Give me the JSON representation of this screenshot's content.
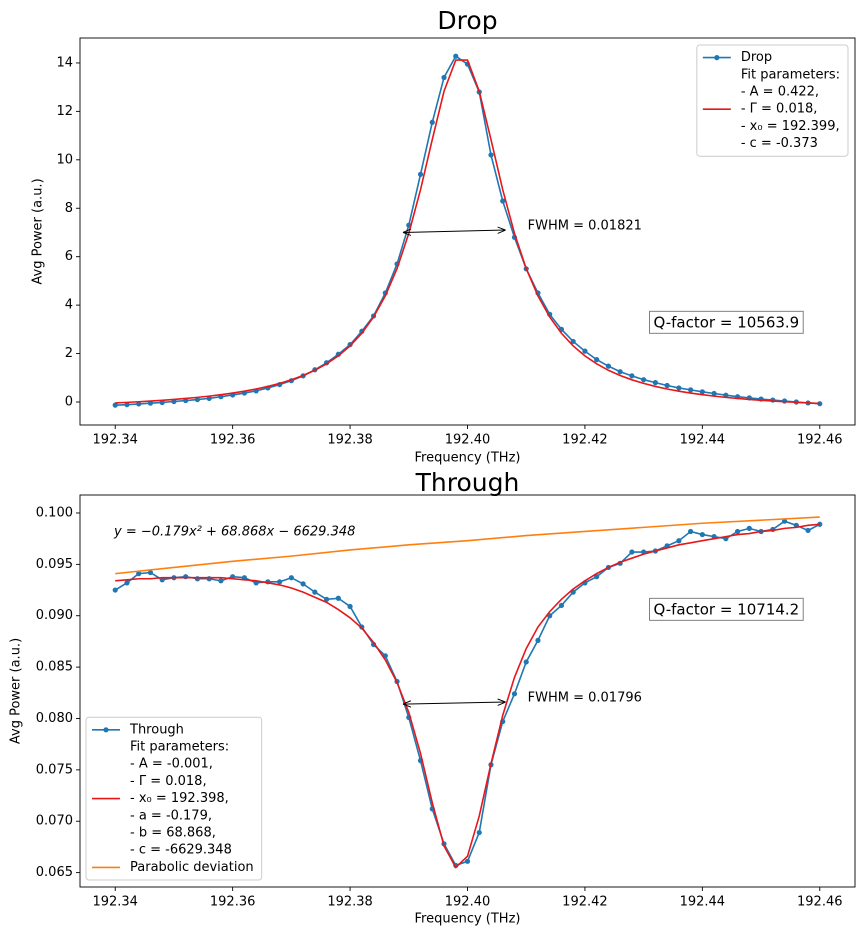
{
  "chart_data": [
    {
      "type": "line",
      "title": "Drop",
      "x_label": "Frequency (THz)",
      "y_label": "Avg Power (a.u.)",
      "x": [
        192.34,
        192.342,
        192.344,
        192.346,
        192.348,
        192.35,
        192.352,
        192.354,
        192.356,
        192.358,
        192.36,
        192.362,
        192.364,
        192.366,
        192.368,
        192.37,
        192.372,
        192.374,
        192.376,
        192.378,
        192.38,
        192.382,
        192.384,
        192.386,
        192.388,
        192.39,
        192.392,
        192.394,
        192.396,
        192.398,
        192.4,
        192.402,
        192.404,
        192.406,
        192.408,
        192.41,
        192.412,
        192.414,
        192.416,
        192.418,
        192.42,
        192.422,
        192.424,
        192.426,
        192.428,
        192.43,
        192.432,
        192.434,
        192.436,
        192.438,
        192.44,
        192.442,
        192.444,
        192.446,
        192.448,
        192.45,
        192.452,
        192.454,
        192.456,
        192.458,
        192.46
      ],
      "series": [
        {
          "name": "Drop",
          "color": "#1f77b4",
          "marker": true,
          "values": [
            -0.13,
            -0.11,
            -0.08,
            -0.05,
            -0.02,
            0.02,
            0.06,
            0.1,
            0.15,
            0.22,
            0.29,
            0.37,
            0.46,
            0.58,
            0.72,
            0.88,
            1.08,
            1.33,
            1.62,
            1.97,
            2.37,
            2.92,
            3.55,
            4.5,
            5.7,
            7.3,
            9.4,
            11.55,
            13.4,
            14.28,
            13.95,
            12.8,
            10.2,
            8.3,
            6.8,
            5.5,
            4.5,
            3.62,
            3.0,
            2.5,
            2.1,
            1.75,
            1.48,
            1.25,
            1.08,
            0.92,
            0.8,
            0.68,
            0.58,
            0.5,
            0.42,
            0.35,
            0.28,
            0.22,
            0.17,
            0.12,
            0.08,
            0.04,
            0,
            -0.04,
            -0.07
          ]
        },
        {
          "name": "Fit parameters:",
          "color": "#e8171a",
          "marker": false,
          "fit_parameters": [
            " - A = 0.422,",
            " - Γ = 0.018,",
            " - x₀ = 192.399,",
            " - c = -0.373"
          ],
          "values": [
            -0.039,
            -0.016,
            0.01,
            0.038,
            0.07,
            0.106,
            0.146,
            0.191,
            0.243,
            0.301,
            0.369,
            0.447,
            0.537,
            0.643,
            0.768,
            0.916,
            1.094,
            1.31,
            1.575,
            1.903,
            2.315,
            2.838,
            3.51,
            4.381,
            5.509,
            6.962,
            8.767,
            10.834,
            12.831,
            14.12,
            14.12,
            12.831,
            10.834,
            8.767,
            6.962,
            5.509,
            4.381,
            3.51,
            2.838,
            2.315,
            1.903,
            1.575,
            1.31,
            1.094,
            0.916,
            0.768,
            0.643,
            0.537,
            0.447,
            0.369,
            0.301,
            0.243,
            0.191,
            0.146,
            0.106,
            0.07,
            0.038,
            0.01,
            -0.016,
            -0.039,
            -0.06
          ]
        }
      ],
      "xlim": [
        192.334,
        192.466
      ],
      "ylim": [
        -0.95,
        15.03
      ],
      "xticks": [
        192.34,
        192.36,
        192.38,
        {
          "value": 192.4,
          "label": "192.40"
        },
        192.42,
        192.44,
        192.46
      ],
      "yticks": [
        0,
        2,
        4,
        6,
        8,
        10,
        12,
        14
      ],
      "legend": "upper right",
      "annotation": {
        "text": "FWHM = 0.01821",
        "x_start": 192.389,
        "x_end": 192.4065,
        "y_start": 7.0,
        "y_end": 7.1
      },
      "q_factor": "Q-factor = 10563.9"
    },
    {
      "type": "line",
      "title": "Through",
      "x_label": "Frequency (THz)",
      "y_label": "Avg Power (a.u.)",
      "x": [
        192.34,
        192.342,
        192.344,
        192.346,
        192.348,
        192.35,
        192.352,
        192.354,
        192.356,
        192.358,
        192.36,
        192.362,
        192.364,
        192.366,
        192.368,
        192.37,
        192.372,
        192.374,
        192.376,
        192.378,
        192.38,
        192.382,
        192.384,
        192.386,
        192.388,
        192.39,
        192.392,
        192.394,
        192.396,
        192.398,
        192.4,
        192.402,
        192.404,
        192.406,
        192.408,
        192.41,
        192.412,
        192.414,
        192.416,
        192.418,
        192.42,
        192.422,
        192.424,
        192.426,
        192.428,
        192.43,
        192.432,
        192.434,
        192.436,
        192.438,
        192.44,
        192.442,
        192.444,
        192.446,
        192.448,
        192.45,
        192.452,
        192.454,
        192.456,
        192.458,
        192.46
      ],
      "series": [
        {
          "name": "Through",
          "color": "#1f77b4",
          "marker": true,
          "values": [
            0.0925,
            0.0932,
            0.0941,
            0.0942,
            0.0935,
            0.0937,
            0.0938,
            0.0936,
            0.0936,
            0.0934,
            0.0938,
            0.0937,
            0.0932,
            0.0933,
            0.0933,
            0.0937,
            0.0931,
            0.0923,
            0.0916,
            0.0917,
            0.0909,
            0.0889,
            0.0872,
            0.0861,
            0.0836,
            0.0801,
            0.0759,
            0.0712,
            0.0678,
            0.0657,
            0.0661,
            0.0689,
            0.0755,
            0.0797,
            0.0824,
            0.0855,
            0.0876,
            0.09,
            0.091,
            0.0923,
            0.0932,
            0.0938,
            0.0947,
            0.0951,
            0.0962,
            0.0962,
            0.0963,
            0.0968,
            0.0973,
            0.0982,
            0.0979,
            0.0977,
            0.0975,
            0.0982,
            0.0985,
            0.0982,
            0.0984,
            0.0992,
            0.0988,
            0.0983,
            0.0989
          ]
        },
        {
          "name": "Fit parameters:",
          "color": "#e8171a",
          "marker": false,
          "fit_parameters": [
            " - A = -0.001,",
            " - Γ = 0.018,",
            " - x₀ = 192.398,",
            " - a = -0.179,",
            " - b = 68.868,",
            " - c = -6629.348"
          ],
          "values": [
            0.0934,
            0.0935,
            0.0936,
            0.0936,
            0.0937,
            0.0937,
            0.0937,
            0.0937,
            0.0937,
            0.0937,
            0.0936,
            0.0935,
            0.0934,
            0.0932,
            0.093,
            0.0927,
            0.0923,
            0.0918,
            0.0913,
            0.0906,
            0.0898,
            0.0888,
            0.0874,
            0.0857,
            0.0835,
            0.0806,
            0.0766,
            0.0718,
            0.0676,
            0.0655,
            0.0666,
            0.0705,
            0.0756,
            0.0803,
            0.084,
            0.0868,
            0.0889,
            0.0904,
            0.0916,
            0.0926,
            0.0934,
            0.0941,
            0.0947,
            0.0952,
            0.0956,
            0.096,
            0.0963,
            0.0966,
            0.0969,
            0.0971,
            0.0973,
            0.0975,
            0.0977,
            0.0979,
            0.098,
            0.0982,
            0.0983,
            0.0985,
            0.0986,
            0.0988,
            0.0989
          ]
        },
        {
          "name": "Parabolic deviation",
          "color": "#ff7f0e",
          "marker": false,
          "x": [
            192.34,
            192.35,
            192.36,
            192.37,
            192.38,
            192.39,
            192.4,
            192.41,
            192.42,
            192.43,
            192.44,
            192.45,
            192.46
          ],
          "values": [
            0.0941,
            0.0947,
            0.0953,
            0.0958,
            0.0964,
            0.0969,
            0.0973,
            0.0978,
            0.0982,
            0.0986,
            0.099,
            0.0993,
            0.0996
          ]
        }
      ],
      "xlim": [
        192.334,
        192.466
      ],
      "ylim": [
        0.0636,
        0.10175
      ],
      "xticks": [
        192.34,
        192.36,
        192.38,
        {
          "value": 192.4,
          "label": "192.40"
        },
        192.42,
        192.44,
        192.46
      ],
      "yticks": [
        0.065,
        {
          "value": 0.07,
          "label": "0.070"
        },
        0.075,
        {
          "value": 0.08,
          "label": "0.080"
        },
        0.085,
        {
          "value": 0.09,
          "label": "0.090"
        },
        0.095,
        {
          "value": 0.1,
          "label": "0.100"
        }
      ],
      "legend": "lower left",
      "equation": "y = −0.179x² + 68.868x − 6629.348",
      "annotation": {
        "text": "FWHM = 0.01796",
        "x_start": 192.389,
        "x_end": 192.4065,
        "y_start": 0.0814,
        "y_end": 0.0816
      },
      "q_factor": "Q-factor = 10714.2"
    }
  ]
}
